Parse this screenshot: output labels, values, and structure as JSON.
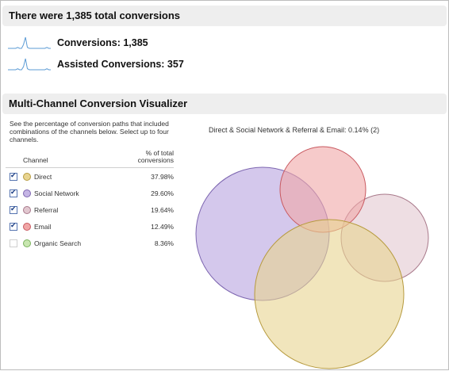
{
  "summary": {
    "title": "There were 1,385 total conversions",
    "metrics": [
      {
        "label": "Conversions: 1,385",
        "sparkline": [
          0,
          0,
          0,
          0,
          0,
          1,
          0,
          0,
          4,
          12,
          1,
          0,
          0,
          0,
          0,
          0,
          0,
          0,
          0,
          0,
          1,
          0,
          0
        ]
      },
      {
        "label": "Assisted Conversions: 357",
        "sparkline": [
          0,
          0,
          0,
          0,
          0,
          1,
          0,
          0,
          3,
          11,
          1,
          0,
          0,
          0,
          0,
          0,
          0,
          0,
          0,
          0,
          1,
          0,
          0
        ]
      }
    ],
    "spark_color": "#5b9bd5"
  },
  "visualizer": {
    "title": "Multi-Channel Conversion Visualizer",
    "description": "See the percentage of conversion paths that included combinations of the channels below. Select up to four channels.",
    "col_channel": "Channel",
    "col_pct_line1": "% of total",
    "col_pct_line2": "conversions",
    "channels": [
      {
        "name": "Direct",
        "pct": "37.98%",
        "checked": true,
        "color": "#e8d490",
        "stroke": "#b79b3f"
      },
      {
        "name": "Social Network",
        "pct": "29.60%",
        "checked": true,
        "color": "#c5b5e5",
        "stroke": "#7d66b0"
      },
      {
        "name": "Referral",
        "pct": "19.64%",
        "checked": true,
        "color": "#e2c8d0",
        "stroke": "#a8788a"
      },
      {
        "name": "Email",
        "pct": "12.49%",
        "checked": true,
        "color": "#f0a6a6",
        "stroke": "#c8585f"
      },
      {
        "name": "Organic Search",
        "pct": "8.36%",
        "checked": false,
        "color": "#c8e6b0",
        "stroke": "#79b25c"
      }
    ],
    "venn_title": "Direct & Social Network & Referral & Email: 0.14% (2)",
    "highlight_color": "#8b1a1a"
  }
}
